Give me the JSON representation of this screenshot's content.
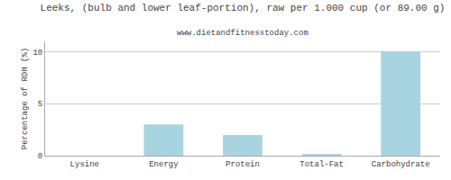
{
  "chart_data": {
    "type": "bar",
    "title": "Leeks, (bulb and lower leaf-portion), raw per 1.000 cup (or 89.00 g)",
    "subtitle": "www.dietandfitnesstoday.com",
    "categories": [
      "Lysine",
      "Energy",
      "Protein",
      "Total-Fat",
      "Carbohydrate"
    ],
    "values": [
      0,
      3.0,
      2.0,
      0.1,
      10.0
    ],
    "color": "#a8d4e0",
    "ylabel": "Percentage of RDH (%)",
    "ylim": [
      0,
      11
    ],
    "yticks": [
      0,
      5,
      10
    ],
    "grid": true
  }
}
